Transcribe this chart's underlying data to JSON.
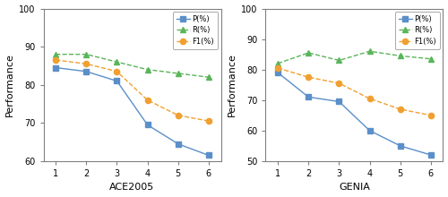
{
  "ace2005": {
    "x": [
      1,
      2,
      3,
      4,
      5,
      6
    ],
    "P": [
      84.5,
      83.5,
      81.0,
      69.5,
      64.5,
      61.5
    ],
    "R": [
      88.0,
      88.0,
      86.0,
      84.0,
      83.0,
      82.0
    ],
    "F1": [
      86.5,
      85.5,
      83.5,
      76.0,
      72.0,
      70.5
    ],
    "ylim": [
      60,
      100
    ],
    "xlabel": "ACE2005"
  },
  "genia": {
    "x": [
      1,
      2,
      3,
      4,
      5,
      6
    ],
    "P": [
      79.0,
      71.0,
      69.5,
      60.0,
      55.0,
      52.0
    ],
    "R": [
      82.0,
      85.5,
      83.0,
      86.0,
      84.5,
      83.5
    ],
    "F1": [
      80.5,
      77.5,
      75.5,
      70.5,
      67.0,
      65.0
    ],
    "ylim": [
      50,
      100
    ],
    "xlabel": "GENIA"
  },
  "legend_labels": [
    "P(%)",
    "R(%)",
    "F1(%)"
  ],
  "P_color": "#5b8fc9",
  "R_color": "#5ab55a",
  "F1_color": "#f0a030",
  "P_marker": "s",
  "R_marker": "^",
  "F1_marker": "o",
  "P_linestyle": "-",
  "R_linestyle": "--",
  "F1_linestyle": "--",
  "ylabel": "Performance",
  "yticks_ace": [
    60,
    70,
    80,
    90,
    100
  ],
  "yticks_genia": [
    50,
    60,
    70,
    80,
    90,
    100
  ],
  "linewidth": 1.0,
  "markersize": 4.5
}
